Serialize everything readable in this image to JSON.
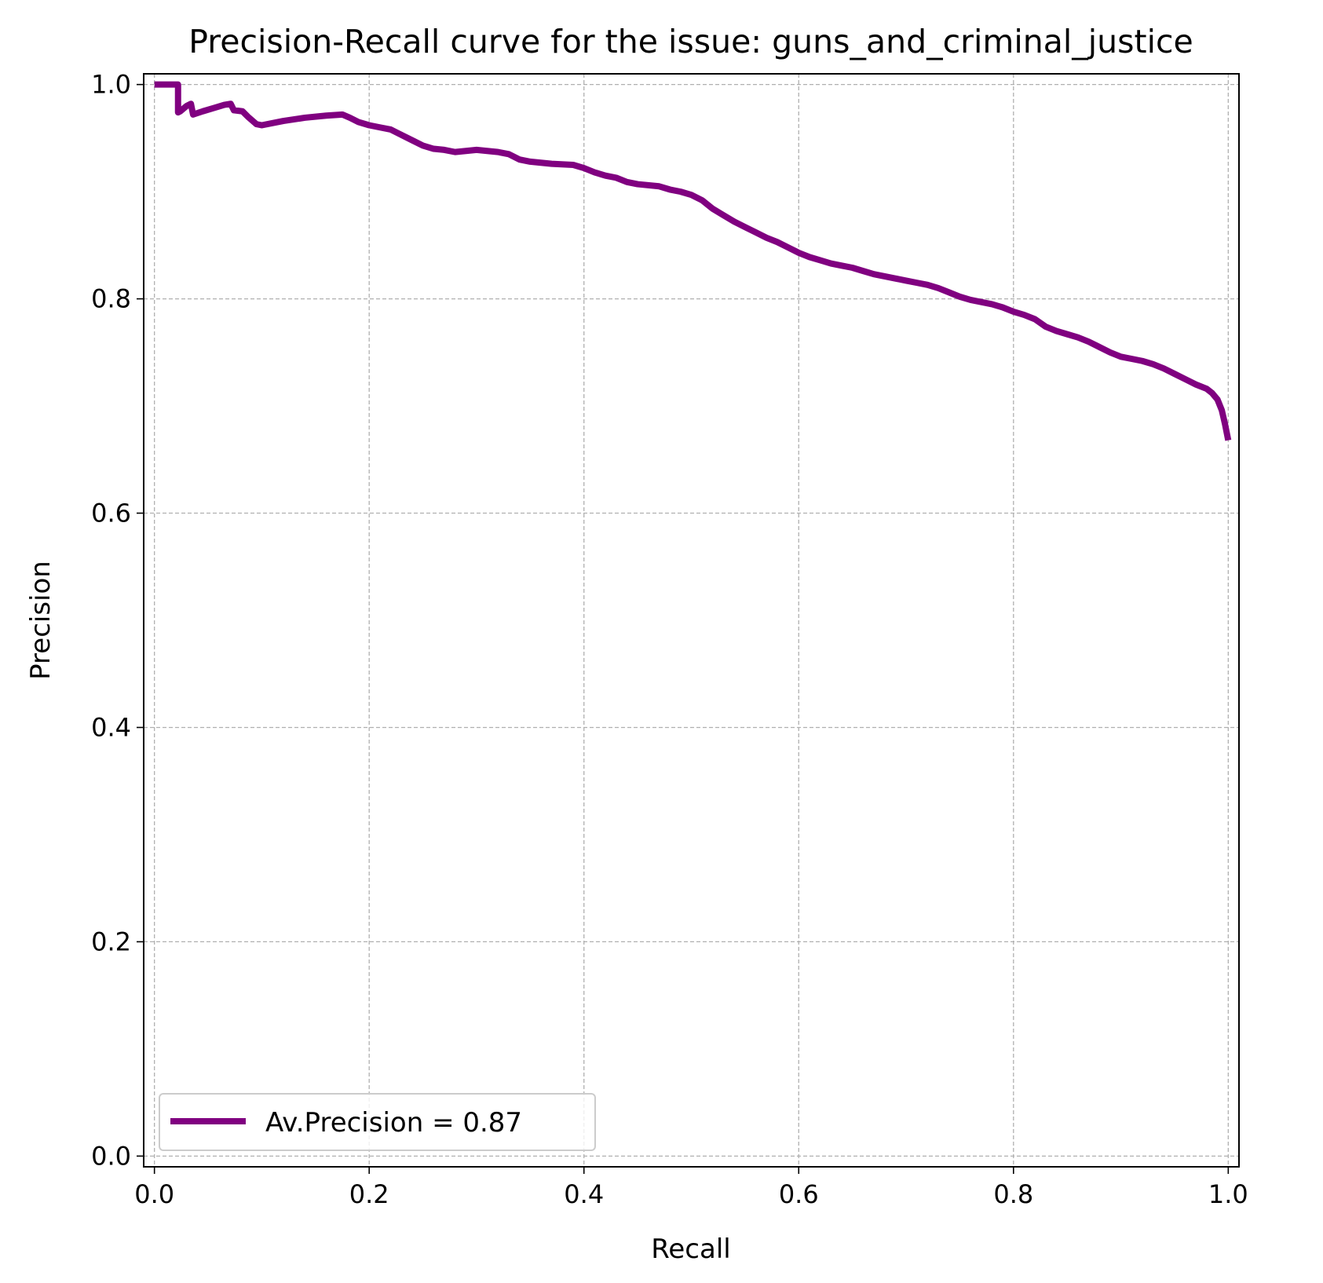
{
  "chart_data": {
    "type": "line",
    "title": "Precision-Recall curve for the issue: guns_and_criminal_justice",
    "xlabel": "Recall",
    "ylabel": "Precision",
    "xlim": [
      -0.01,
      1.01
    ],
    "ylim": [
      -0.01,
      1.01
    ],
    "x_ticks": [
      "0.0",
      "0.2",
      "0.4",
      "0.6",
      "0.8",
      "1.0"
    ],
    "y_ticks": [
      "0.0",
      "0.2",
      "0.4",
      "0.6",
      "0.8",
      "1.0"
    ],
    "grid": true,
    "legend_position": "lower-left",
    "series": [
      {
        "name": "Av.Precision = 0.87",
        "color": "#800080",
        "x": [
          0.0,
          0.022,
          0.022,
          0.024,
          0.03,
          0.034,
          0.036,
          0.045,
          0.055,
          0.065,
          0.071,
          0.074,
          0.082,
          0.087,
          0.095,
          0.1,
          0.12,
          0.14,
          0.16,
          0.175,
          0.182,
          0.19,
          0.2,
          0.21,
          0.22,
          0.23,
          0.24,
          0.25,
          0.26,
          0.27,
          0.28,
          0.3,
          0.31,
          0.32,
          0.33,
          0.34,
          0.35,
          0.37,
          0.39,
          0.4,
          0.41,
          0.42,
          0.43,
          0.44,
          0.45,
          0.47,
          0.48,
          0.49,
          0.5,
          0.51,
          0.52,
          0.53,
          0.54,
          0.55,
          0.56,
          0.57,
          0.58,
          0.59,
          0.6,
          0.61,
          0.62,
          0.63,
          0.64,
          0.65,
          0.66,
          0.67,
          0.68,
          0.69,
          0.7,
          0.71,
          0.72,
          0.73,
          0.74,
          0.75,
          0.76,
          0.77,
          0.78,
          0.79,
          0.8,
          0.81,
          0.82,
          0.83,
          0.84,
          0.85,
          0.86,
          0.87,
          0.88,
          0.89,
          0.9,
          0.91,
          0.92,
          0.93,
          0.94,
          0.95,
          0.96,
          0.97,
          0.98,
          0.985,
          0.99,
          0.994,
          0.997,
          1.0
        ],
        "y": [
          1.0,
          1.0,
          0.974,
          0.975,
          0.98,
          0.982,
          0.972,
          0.975,
          0.978,
          0.981,
          0.982,
          0.976,
          0.975,
          0.97,
          0.963,
          0.962,
          0.966,
          0.969,
          0.971,
          0.972,
          0.969,
          0.965,
          0.962,
          0.96,
          0.958,
          0.953,
          0.948,
          0.943,
          0.94,
          0.939,
          0.937,
          0.939,
          0.938,
          0.937,
          0.935,
          0.93,
          0.928,
          0.926,
          0.925,
          0.922,
          0.918,
          0.915,
          0.913,
          0.909,
          0.907,
          0.905,
          0.902,
          0.9,
          0.897,
          0.892,
          0.884,
          0.878,
          0.872,
          0.867,
          0.862,
          0.857,
          0.853,
          0.848,
          0.843,
          0.839,
          0.836,
          0.833,
          0.831,
          0.829,
          0.826,
          0.823,
          0.821,
          0.819,
          0.817,
          0.815,
          0.813,
          0.81,
          0.806,
          0.802,
          0.799,
          0.797,
          0.795,
          0.792,
          0.788,
          0.785,
          0.781,
          0.774,
          0.77,
          0.767,
          0.764,
          0.76,
          0.755,
          0.75,
          0.746,
          0.744,
          0.742,
          0.739,
          0.735,
          0.73,
          0.725,
          0.72,
          0.716,
          0.712,
          0.706,
          0.696,
          0.683,
          0.668
        ]
      }
    ]
  }
}
